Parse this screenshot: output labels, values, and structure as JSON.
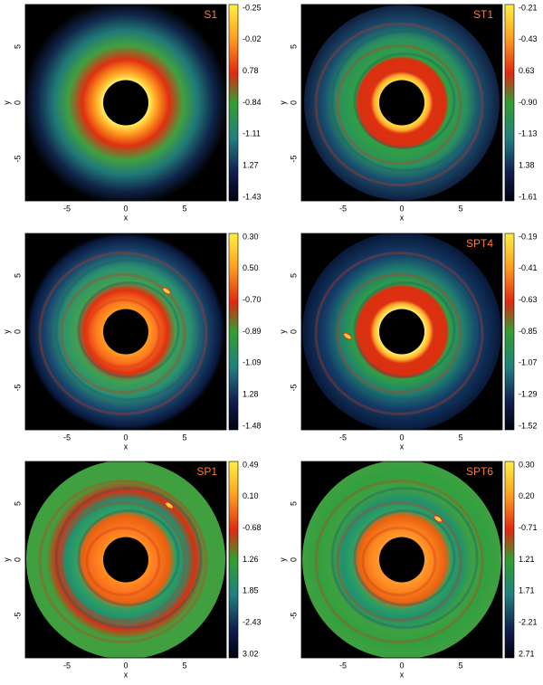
{
  "axes": {
    "xticks": [
      "-5",
      "0",
      "5"
    ],
    "yticks": [
      "5",
      "0",
      "-5"
    ],
    "xlabel": "x",
    "ylabel": "y"
  },
  "panels": [
    {
      "label": "S1",
      "colorbar": [
        "-0.25",
        "-0.02",
        "0.78",
        "-0.84",
        "-1.11",
        "1.27",
        "-1.43"
      ]
    },
    {
      "label": "ST1",
      "colorbar": [
        "-0.21",
        "-0.43",
        "0.63",
        "-0.90",
        "-1.13",
        "1.38",
        "-1.61"
      ]
    },
    {
      "label": "",
      "colorbar": [
        "0.30",
        "0.50",
        "-0.70",
        "-0.89",
        "-1.09",
        "1.28",
        "-1.48"
      ]
    },
    {
      "label": "SPT4",
      "colorbar": [
        "-0.19",
        "-0.41",
        "-0.63",
        "-0.85",
        "-1.07",
        "-1.29",
        "-1.52"
      ]
    },
    {
      "label": "SP1",
      "colorbar": [
        "0.49",
        "0.10",
        "-0.68",
        "1.26",
        "1.85",
        "-2.43",
        "3.02"
      ]
    },
    {
      "label": "SPT6",
      "colorbar": [
        "0.30",
        "0.20",
        "-0.71",
        "1.21",
        "1.71",
        "-2.21",
        "2.71"
      ]
    }
  ]
}
